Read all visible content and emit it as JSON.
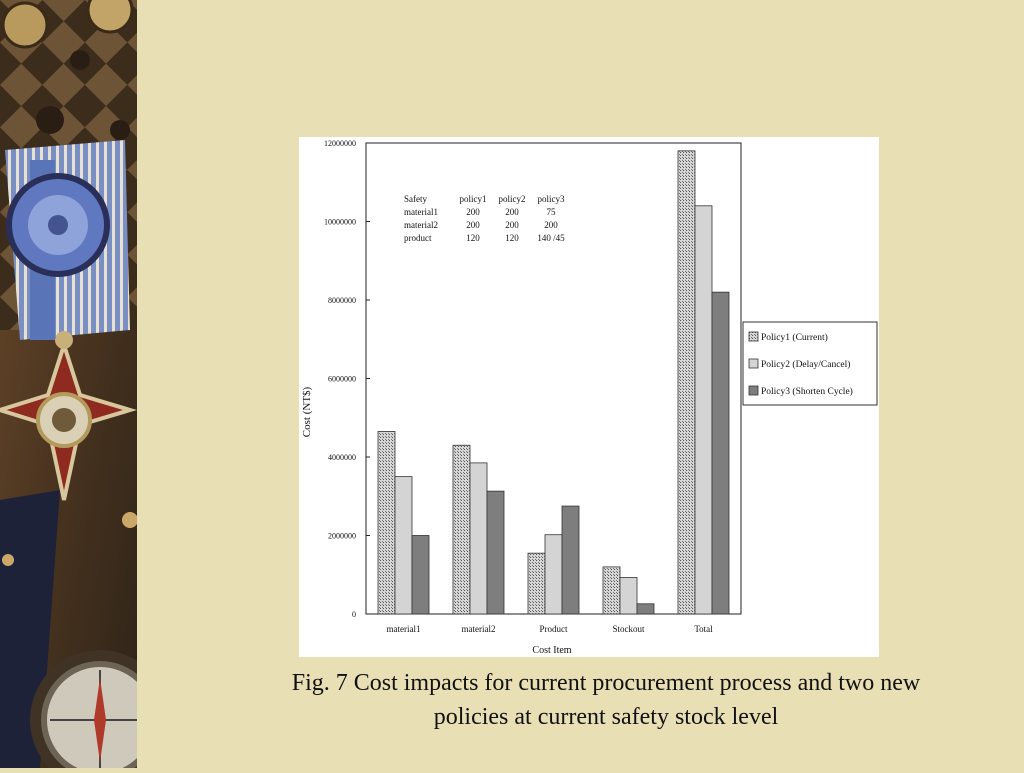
{
  "slide": {
    "background": "#E9DFB5",
    "caption_line1": "Fig. 7 Cost impacts for current procurement process and two new",
    "caption_line2": "policies at current safety stock level"
  },
  "chart_data": {
    "type": "bar",
    "title": "",
    "xlabel": "Cost Item",
    "ylabel": "Cost (NT$)",
    "ylim": [
      0,
      12000000
    ],
    "yticks": [
      0,
      2000000,
      4000000,
      6000000,
      8000000,
      10000000,
      12000000
    ],
    "ytick_labels": [
      "0",
      "2000000",
      "4000000",
      "6000000",
      "8000000",
      "10000000",
      "12000000"
    ],
    "categories": [
      "material1",
      "material2",
      "Product",
      "Stockout",
      "Total"
    ],
    "series": [
      {
        "name": "Policy1 (Current)",
        "values": [
          4650000,
          4300000,
          1550000,
          1200000,
          11800000
        ],
        "color": "#c9c9c9",
        "pattern": "crosshatch"
      },
      {
        "name": "Policy2 (Delay/Cancel)",
        "values": [
          3500000,
          3850000,
          2020000,
          930000,
          10400000
        ],
        "color": "#d4d4d4",
        "pattern": "none"
      },
      {
        "name": "Policy3 (Shorten Cycle)",
        "values": [
          2000000,
          3130000,
          2750000,
          260000,
          8200000
        ],
        "color": "#7e7e7e",
        "pattern": "none"
      }
    ],
    "legend_position": "right",
    "grid": false,
    "annotation_table": {
      "headers": [
        "Safety",
        "policy1",
        "policy2",
        "policy3"
      ],
      "rows": [
        [
          "material1",
          "200",
          "200",
          "75"
        ],
        [
          "material2",
          "200",
          "200",
          "200"
        ],
        [
          "product",
          "120",
          "120",
          "140 /45"
        ]
      ]
    }
  }
}
